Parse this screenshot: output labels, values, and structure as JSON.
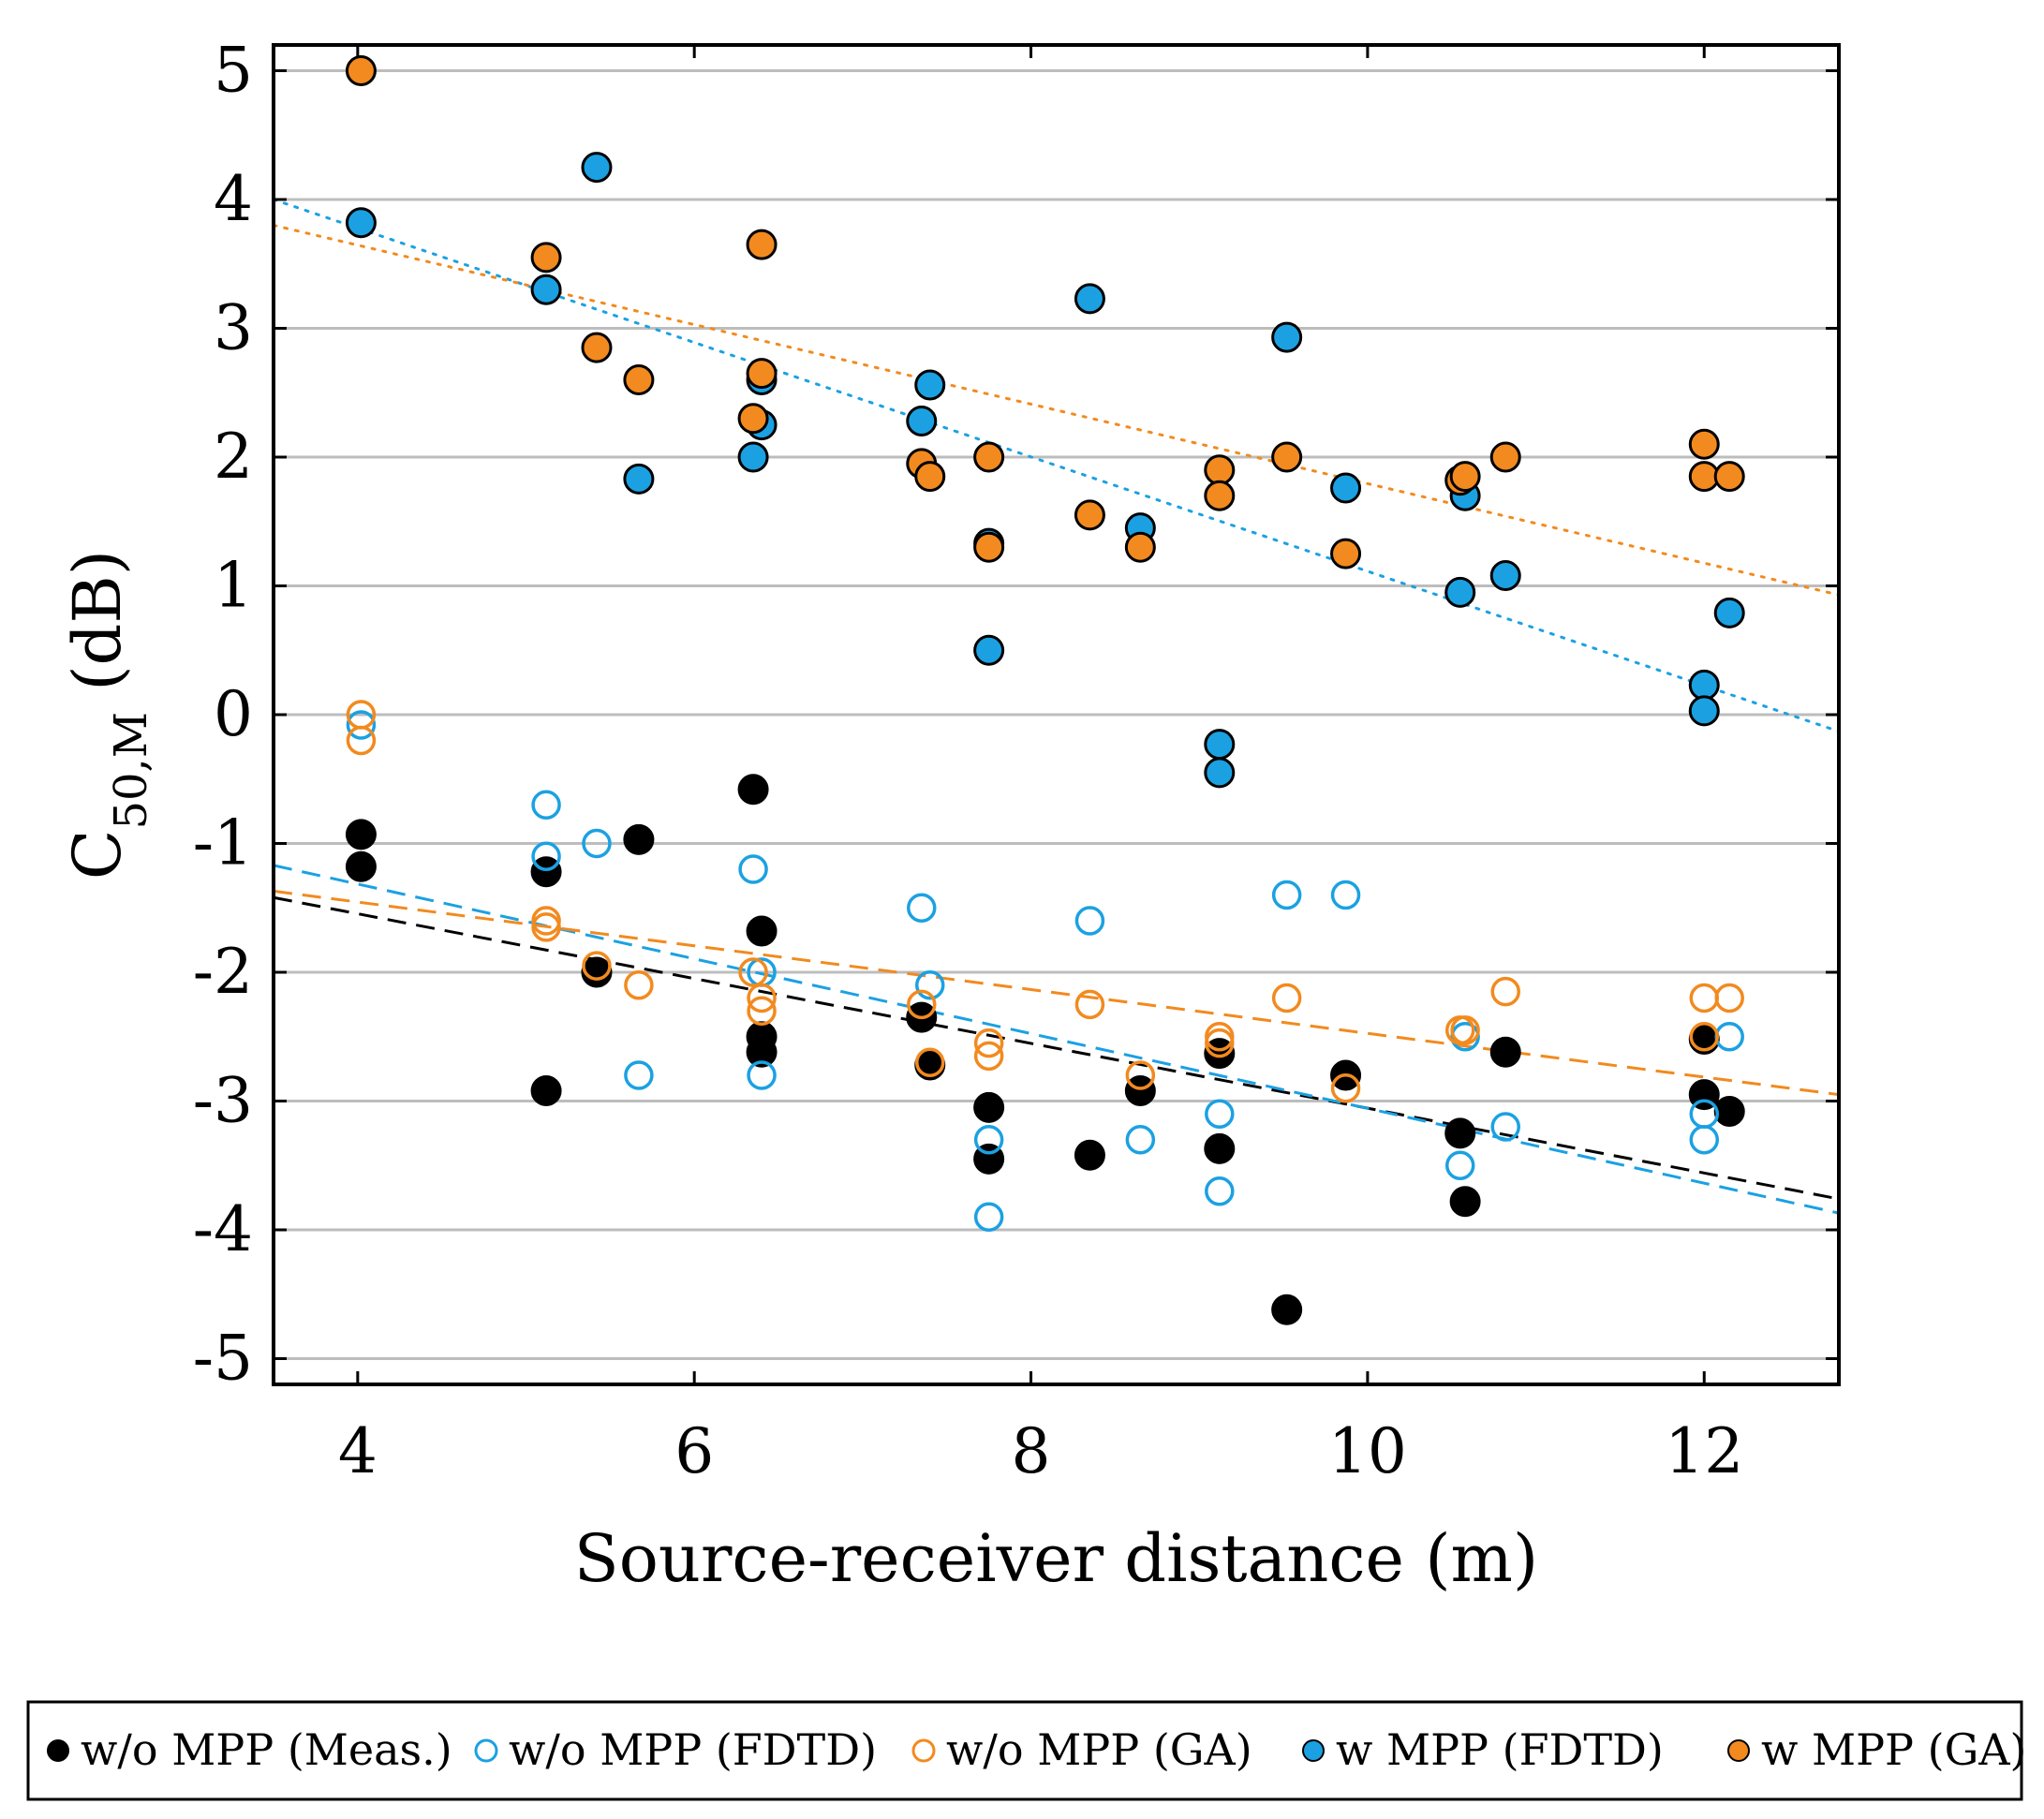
{
  "chart_data": {
    "type": "scatter",
    "title": "",
    "xlabel": "Source-receiver distance (m)",
    "ylabel": {
      "base": "C",
      "subscript": "50,M",
      "unit": " (dB)"
    },
    "xlim": [
      3.5,
      12.8
    ],
    "ylim": [
      -5.2,
      5.2
    ],
    "xticks": [
      4,
      6,
      8,
      10,
      12
    ],
    "yticks": [
      5,
      4,
      3,
      2,
      1,
      0,
      -1,
      -2,
      -3,
      -4,
      -5
    ],
    "xtick_labels": [
      "4",
      "6",
      "8",
      "10",
      "12"
    ],
    "ytick_labels": [
      "5",
      "4",
      "3",
      "2",
      "1",
      "0",
      "-1",
      "-2",
      "-3",
      "-4",
      "-5"
    ],
    "grid": "horizontal",
    "legend_position": "bottom",
    "colors": {
      "black": "#000000",
      "blue": "#1ba1e2",
      "orange": "#f28a1f"
    },
    "series": [
      {
        "name": "w/o MPP (Meas.)",
        "color": "#000000",
        "filled": true,
        "points": [
          [
            4.02,
            -0.93
          ],
          [
            4.02,
            -1.18
          ],
          [
            5.12,
            -1.22
          ],
          [
            5.12,
            -2.92
          ],
          [
            5.42,
            -2.0
          ],
          [
            5.67,
            -0.97
          ],
          [
            6.35,
            -0.58
          ],
          [
            6.4,
            -1.68
          ],
          [
            6.4,
            -2.5
          ],
          [
            6.4,
            -2.62
          ],
          [
            7.35,
            -2.35
          ],
          [
            7.4,
            -2.72
          ],
          [
            7.75,
            -3.05
          ],
          [
            7.75,
            -3.45
          ],
          [
            8.35,
            -3.42
          ],
          [
            8.65,
            -2.92
          ],
          [
            9.12,
            -2.63
          ],
          [
            9.12,
            -3.37
          ],
          [
            9.52,
            -4.62
          ],
          [
            9.87,
            -2.8
          ],
          [
            10.55,
            -3.25
          ],
          [
            10.58,
            -3.78
          ],
          [
            10.82,
            -2.62
          ],
          [
            12.0,
            -2.52
          ],
          [
            12.0,
            -2.95
          ],
          [
            12.15,
            -3.08
          ]
        ]
      },
      {
        "name": "w/o MPP (FDTD)",
        "color": "#1ba1e2",
        "filled": false,
        "points": [
          [
            4.02,
            -0.08
          ],
          [
            5.12,
            -0.7
          ],
          [
            5.12,
            -1.1
          ],
          [
            5.42,
            -1.0
          ],
          [
            5.67,
            -2.8
          ],
          [
            6.35,
            -1.2
          ],
          [
            6.4,
            -2.0
          ],
          [
            6.4,
            -2.8
          ],
          [
            7.35,
            -1.5
          ],
          [
            7.4,
            -2.1
          ],
          [
            7.75,
            -3.3
          ],
          [
            7.75,
            -3.9
          ],
          [
            8.35,
            -1.6
          ],
          [
            8.65,
            -3.3
          ],
          [
            9.12,
            -3.1
          ],
          [
            9.12,
            -3.7
          ],
          [
            9.52,
            -1.4
          ],
          [
            9.87,
            -1.4
          ],
          [
            10.55,
            -3.5
          ],
          [
            10.58,
            -2.5
          ],
          [
            10.82,
            -3.2
          ],
          [
            12.0,
            -3.3
          ],
          [
            12.0,
            -3.1
          ],
          [
            12.15,
            -2.5
          ]
        ]
      },
      {
        "name": "w/o MPP (GA)",
        "color": "#f28a1f",
        "filled": false,
        "points": [
          [
            4.02,
            0.0
          ],
          [
            4.02,
            -0.2
          ],
          [
            5.12,
            -1.6
          ],
          [
            5.12,
            -1.65
          ],
          [
            5.42,
            -1.95
          ],
          [
            5.67,
            -2.1
          ],
          [
            6.35,
            -2.0
          ],
          [
            6.4,
            -2.2
          ],
          [
            6.4,
            -2.3
          ],
          [
            7.35,
            -2.25
          ],
          [
            7.4,
            -2.7
          ],
          [
            7.75,
            -2.55
          ],
          [
            7.75,
            -2.65
          ],
          [
            8.35,
            -2.25
          ],
          [
            8.65,
            -2.8
          ],
          [
            9.12,
            -2.5
          ],
          [
            9.12,
            -2.55
          ],
          [
            9.52,
            -2.2
          ],
          [
            9.87,
            -2.9
          ],
          [
            10.55,
            -2.45
          ],
          [
            10.58,
            -2.45
          ],
          [
            10.82,
            -2.15
          ],
          [
            12.0,
            -2.2
          ],
          [
            12.0,
            -2.5
          ],
          [
            12.15,
            -2.2
          ]
        ]
      },
      {
        "name": "w MPP (FDTD)",
        "color": "#1ba1e2",
        "filled": true,
        "points": [
          [
            4.02,
            3.82
          ],
          [
            5.12,
            3.3
          ],
          [
            5.42,
            4.25
          ],
          [
            5.67,
            1.83
          ],
          [
            6.35,
            2.0
          ],
          [
            6.4,
            2.25
          ],
          [
            6.4,
            2.6
          ],
          [
            7.35,
            2.28
          ],
          [
            7.4,
            2.56
          ],
          [
            7.75,
            0.5
          ],
          [
            7.75,
            1.33
          ],
          [
            8.35,
            3.23
          ],
          [
            8.65,
            1.45
          ],
          [
            9.12,
            -0.23
          ],
          [
            9.12,
            -0.45
          ],
          [
            9.52,
            2.93
          ],
          [
            9.87,
            1.76
          ],
          [
            10.55,
            0.95
          ],
          [
            10.58,
            1.7
          ],
          [
            10.82,
            1.08
          ],
          [
            12.0,
            0.23
          ],
          [
            12.0,
            0.03
          ],
          [
            12.15,
            0.79
          ]
        ]
      },
      {
        "name": "w MPP (GA)",
        "color": "#f28a1f",
        "filled": true,
        "points": [
          [
            4.02,
            5.0
          ],
          [
            5.12,
            3.55
          ],
          [
            5.42,
            2.85
          ],
          [
            5.67,
            2.6
          ],
          [
            6.35,
            2.3
          ],
          [
            6.4,
            2.65
          ],
          [
            6.4,
            3.65
          ],
          [
            7.35,
            1.95
          ],
          [
            7.4,
            1.85
          ],
          [
            7.75,
            2.0
          ],
          [
            7.75,
            1.3
          ],
          [
            8.35,
            1.55
          ],
          [
            8.65,
            1.3
          ],
          [
            9.12,
            1.9
          ],
          [
            9.12,
            1.7
          ],
          [
            9.52,
            2.0
          ],
          [
            9.87,
            1.25
          ],
          [
            10.55,
            1.82
          ],
          [
            10.58,
            1.85
          ],
          [
            10.82,
            2.0
          ],
          [
            12.0,
            2.1
          ],
          [
            12.0,
            1.85
          ],
          [
            12.15,
            1.85
          ]
        ]
      }
    ],
    "trendlines": [
      {
        "series": "w/o MPP (Meas.)",
        "color": "#000000",
        "style": "dashed",
        "x": [
          3.5,
          12.8
        ],
        "y": [
          -1.42,
          -3.76
        ]
      },
      {
        "series": "w/o MPP (FDTD)",
        "color": "#1ba1e2",
        "style": "dashed",
        "x": [
          3.5,
          12.8
        ],
        "y": [
          -1.17,
          -3.87
        ]
      },
      {
        "series": "w/o MPP (GA)",
        "color": "#f28a1f",
        "style": "dashed",
        "x": [
          3.5,
          12.8
        ],
        "y": [
          -1.37,
          -2.95
        ]
      },
      {
        "series": "w MPP (FDTD)",
        "color": "#1ba1e2",
        "style": "dotted",
        "x": [
          3.5,
          12.8
        ],
        "y": [
          4.0,
          -0.13
        ]
      },
      {
        "series": "w MPP (GA)",
        "color": "#f28a1f",
        "style": "dotted",
        "x": [
          3.5,
          12.8
        ],
        "y": [
          3.8,
          0.93
        ]
      }
    ],
    "legend": [
      {
        "label": "w/o MPP (Meas.)",
        "color": "#000000",
        "filled": true
      },
      {
        "label": "w/o MPP (FDTD)",
        "color": "#1ba1e2",
        "filled": false
      },
      {
        "label": "w/o MPP (GA)",
        "color": "#f28a1f",
        "filled": false
      },
      {
        "label": "w MPP (FDTD)",
        "color": "#1ba1e2",
        "filled": true
      },
      {
        "label": "w MPP (GA)",
        "color": "#f28a1f",
        "filled": true
      }
    ]
  }
}
